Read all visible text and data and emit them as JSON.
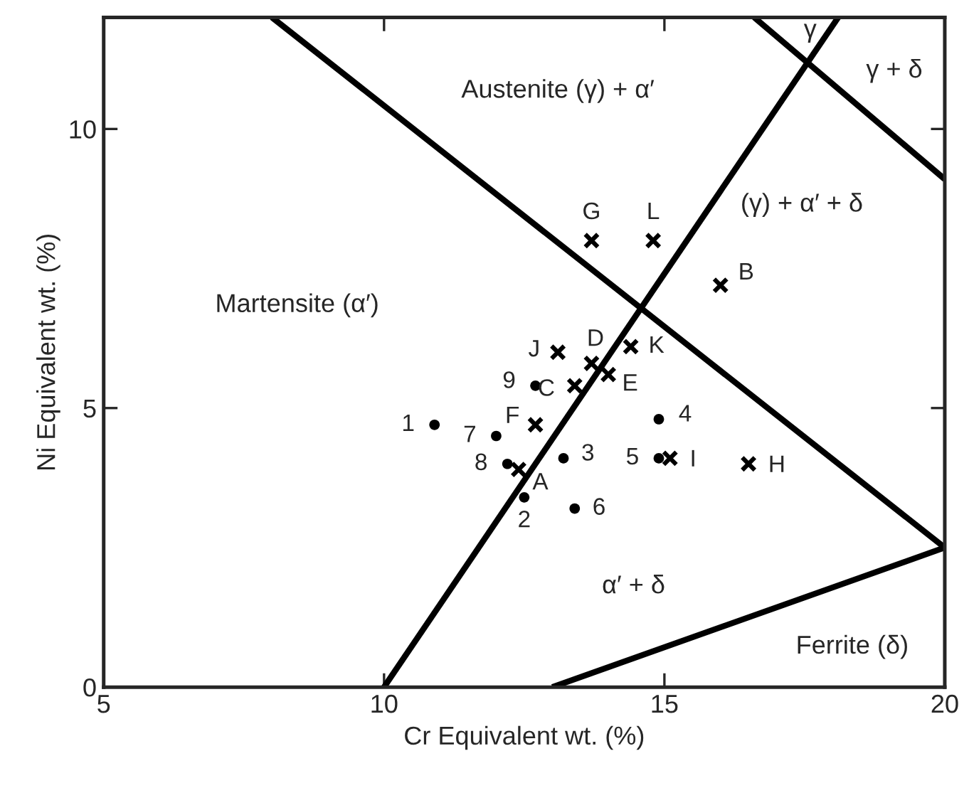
{
  "chart_data": {
    "type": "scatter",
    "xlabel": "Cr Equivalent wt. (%)",
    "ylabel": "Ni Equivalent wt. (%)",
    "xlim": [
      5,
      20
    ],
    "ylim": [
      0,
      12
    ],
    "xticks": [
      5,
      10,
      15,
      20
    ],
    "yticks": [
      0,
      5,
      10
    ],
    "grid": false,
    "legend": false,
    "series": [
      {
        "type": "line",
        "color": "#000000",
        "x": [
          8,
          20
        ],
        "values": [
          12,
          2.5
        ]
      },
      {
        "type": "line",
        "color": "#000000",
        "x": [
          10,
          18.1
        ],
        "values": [
          0,
          12
        ]
      },
      {
        "type": "line",
        "color": "#000000",
        "x": [
          16.6,
          20
        ],
        "values": [
          12,
          9.1
        ]
      },
      {
        "type": "line",
        "color": "#000000",
        "x": [
          13,
          20
        ],
        "values": [
          0,
          2.5
        ]
      },
      {
        "marker": "circle",
        "color": "#000000",
        "x": [
          10.9,
          12.5,
          13.2,
          14.9,
          14.9,
          13.4,
          12.0,
          12.2,
          12.7
        ],
        "values": [
          4.7,
          3.4,
          4.1,
          4.8,
          4.1,
          3.2,
          4.5,
          4.0,
          5.4
        ]
      },
      {
        "marker": "cross",
        "color": "#000000",
        "x": [
          12.4,
          16.0,
          13.4,
          13.7,
          14.0,
          12.7,
          13.7,
          16.5,
          15.1,
          13.1,
          14.4,
          14.8
        ],
        "values": [
          3.9,
          7.2,
          5.4,
          5.8,
          5.6,
          4.7,
          8.0,
          4.0,
          4.1,
          6.0,
          6.1,
          8.0
        ]
      }
    ],
    "annotations": [
      {
        "text": "1",
        "x": 10.9,
        "y": 4.7
      },
      {
        "text": "2",
        "x": 12.5,
        "y": 3.4
      },
      {
        "text": "3",
        "x": 13.2,
        "y": 4.1
      },
      {
        "text": "4",
        "x": 14.9,
        "y": 4.8
      },
      {
        "text": "5",
        "x": 14.9,
        "y": 4.1
      },
      {
        "text": "6",
        "x": 13.4,
        "y": 3.2
      },
      {
        "text": "7",
        "x": 12.0,
        "y": 4.5
      },
      {
        "text": "8",
        "x": 12.2,
        "y": 4.0
      },
      {
        "text": "9",
        "x": 12.7,
        "y": 5.4
      },
      {
        "text": "A",
        "x": 12.4,
        "y": 3.9
      },
      {
        "text": "B",
        "x": 16.0,
        "y": 7.2
      },
      {
        "text": "C",
        "x": 13.4,
        "y": 5.4
      },
      {
        "text": "D",
        "x": 13.7,
        "y": 5.8
      },
      {
        "text": "E",
        "x": 14.0,
        "y": 5.6
      },
      {
        "text": "F",
        "x": 12.7,
        "y": 4.7
      },
      {
        "text": "G",
        "x": 13.7,
        "y": 8.0
      },
      {
        "text": "H",
        "x": 16.5,
        "y": 4.0
      },
      {
        "text": "I",
        "x": 15.1,
        "y": 4.1
      },
      {
        "text": "J",
        "x": 13.1,
        "y": 6.0
      },
      {
        "text": "K",
        "x": 14.4,
        "y": 6.1
      },
      {
        "text": "L",
        "x": 14.8,
        "y": 8.0
      },
      "Austenite (γ) + α′",
      "γ",
      "γ + δ",
      "(γ) + α′ + δ",
      "Martensite (α′)",
      "α′ + δ",
      "Ferrite (δ)"
    ]
  }
}
